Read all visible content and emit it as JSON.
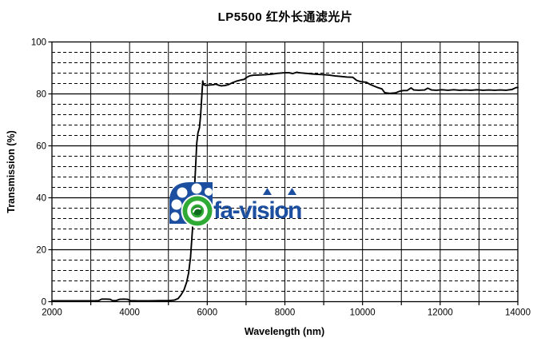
{
  "title": "LP5500 红外长通滤光片",
  "logo": {
    "text": "fa-vision",
    "mark_icon": "dial-eye-logo",
    "blue": "#1c4f9f",
    "green": "#2faa35"
  },
  "chart_data": {
    "type": "line",
    "title": "LP5500 红外长通滤光片",
    "xlabel": "Wavelength (nm)",
    "ylabel": "Transmission (%)",
    "xlim": [
      2000,
      14000
    ],
    "ylim": [
      0,
      100
    ],
    "x_major_ticks": [
      2000,
      4000,
      6000,
      8000,
      10000,
      12000,
      14000
    ],
    "x_minor_step": 1000,
    "y_major_ticks": [
      0,
      20,
      40,
      60,
      80,
      100
    ],
    "y_minor_step": 4,
    "grid": {
      "x_minor": "solid",
      "y_major": "solid",
      "y_minor": "dashed"
    },
    "legend": "none",
    "line_color": "#000000",
    "series": [
      {
        "name": "transmission",
        "points": [
          [
            2000,
            0.3
          ],
          [
            2300,
            0.3
          ],
          [
            2600,
            0.3
          ],
          [
            2900,
            0.3
          ],
          [
            3100,
            0.3
          ],
          [
            3200,
            0.4
          ],
          [
            3280,
            1.0
          ],
          [
            3400,
            1.0
          ],
          [
            3500,
            0.9
          ],
          [
            3560,
            0.4
          ],
          [
            3650,
            0.4
          ],
          [
            3740,
            0.9
          ],
          [
            3850,
            1.0
          ],
          [
            3950,
            0.9
          ],
          [
            4020,
            0.4
          ],
          [
            4200,
            0.3
          ],
          [
            4500,
            0.3
          ],
          [
            4800,
            0.4
          ],
          [
            5000,
            0.4
          ],
          [
            5150,
            0.6
          ],
          [
            5250,
            1.2
          ],
          [
            5320,
            2.5
          ],
          [
            5400,
            4.5
          ],
          [
            5470,
            7.5
          ],
          [
            5520,
            11
          ],
          [
            5570,
            17
          ],
          [
            5620,
            28
          ],
          [
            5660,
            40
          ],
          [
            5700,
            52
          ],
          [
            5730,
            61
          ],
          [
            5760,
            65
          ],
          [
            5800,
            67
          ],
          [
            5830,
            72
          ],
          [
            5860,
            79
          ],
          [
            5885,
            85
          ],
          [
            5905,
            83.6
          ],
          [
            5950,
            83.3
          ],
          [
            6050,
            83.4
          ],
          [
            6150,
            83.5
          ],
          [
            6220,
            83.8
          ],
          [
            6280,
            83.4
          ],
          [
            6360,
            83.1
          ],
          [
            6450,
            83.2
          ],
          [
            6550,
            83.6
          ],
          [
            6650,
            84.3
          ],
          [
            6750,
            84.9
          ],
          [
            6850,
            85.3
          ],
          [
            6950,
            85.6
          ],
          [
            7020,
            86.4
          ],
          [
            7100,
            87.0
          ],
          [
            7200,
            87.2
          ],
          [
            7350,
            87.3
          ],
          [
            7500,
            87.4
          ],
          [
            7650,
            87.6
          ],
          [
            7800,
            87.9
          ],
          [
            7950,
            88.1
          ],
          [
            8100,
            88.2
          ],
          [
            8200,
            87.8
          ],
          [
            8300,
            88.3
          ],
          [
            8400,
            88.1
          ],
          [
            8550,
            87.9
          ],
          [
            8700,
            87.7
          ],
          [
            8850,
            87.5
          ],
          [
            9000,
            87.4
          ],
          [
            9150,
            87.2
          ],
          [
            9300,
            86.9
          ],
          [
            9450,
            86.7
          ],
          [
            9600,
            86.5
          ],
          [
            9750,
            86.4
          ],
          [
            9850,
            85.2
          ],
          [
            9950,
            84.7
          ],
          [
            10100,
            84.5
          ],
          [
            10200,
            83.6
          ],
          [
            10300,
            83.0
          ],
          [
            10400,
            82.4
          ],
          [
            10500,
            81.9
          ],
          [
            10570,
            80.5
          ],
          [
            10700,
            80.2
          ],
          [
            10850,
            80.4
          ],
          [
            10950,
            81.0
          ],
          [
            11050,
            81.3
          ],
          [
            11150,
            81.3
          ],
          [
            11250,
            82.3
          ],
          [
            11320,
            81.5
          ],
          [
            11450,
            81.4
          ],
          [
            11600,
            81.5
          ],
          [
            11680,
            82.2
          ],
          [
            11780,
            81.5
          ],
          [
            11900,
            81.4
          ],
          [
            12050,
            81.6
          ],
          [
            12200,
            81.4
          ],
          [
            12350,
            81.6
          ],
          [
            12500,
            81.4
          ],
          [
            12650,
            81.5
          ],
          [
            12800,
            81.4
          ],
          [
            12950,
            81.6
          ],
          [
            13100,
            81.4
          ],
          [
            13250,
            81.5
          ],
          [
            13400,
            81.4
          ],
          [
            13550,
            81.5
          ],
          [
            13700,
            81.4
          ],
          [
            13850,
            81.7
          ],
          [
            13950,
            82.4
          ],
          [
            14000,
            82.5
          ]
        ]
      }
    ]
  }
}
